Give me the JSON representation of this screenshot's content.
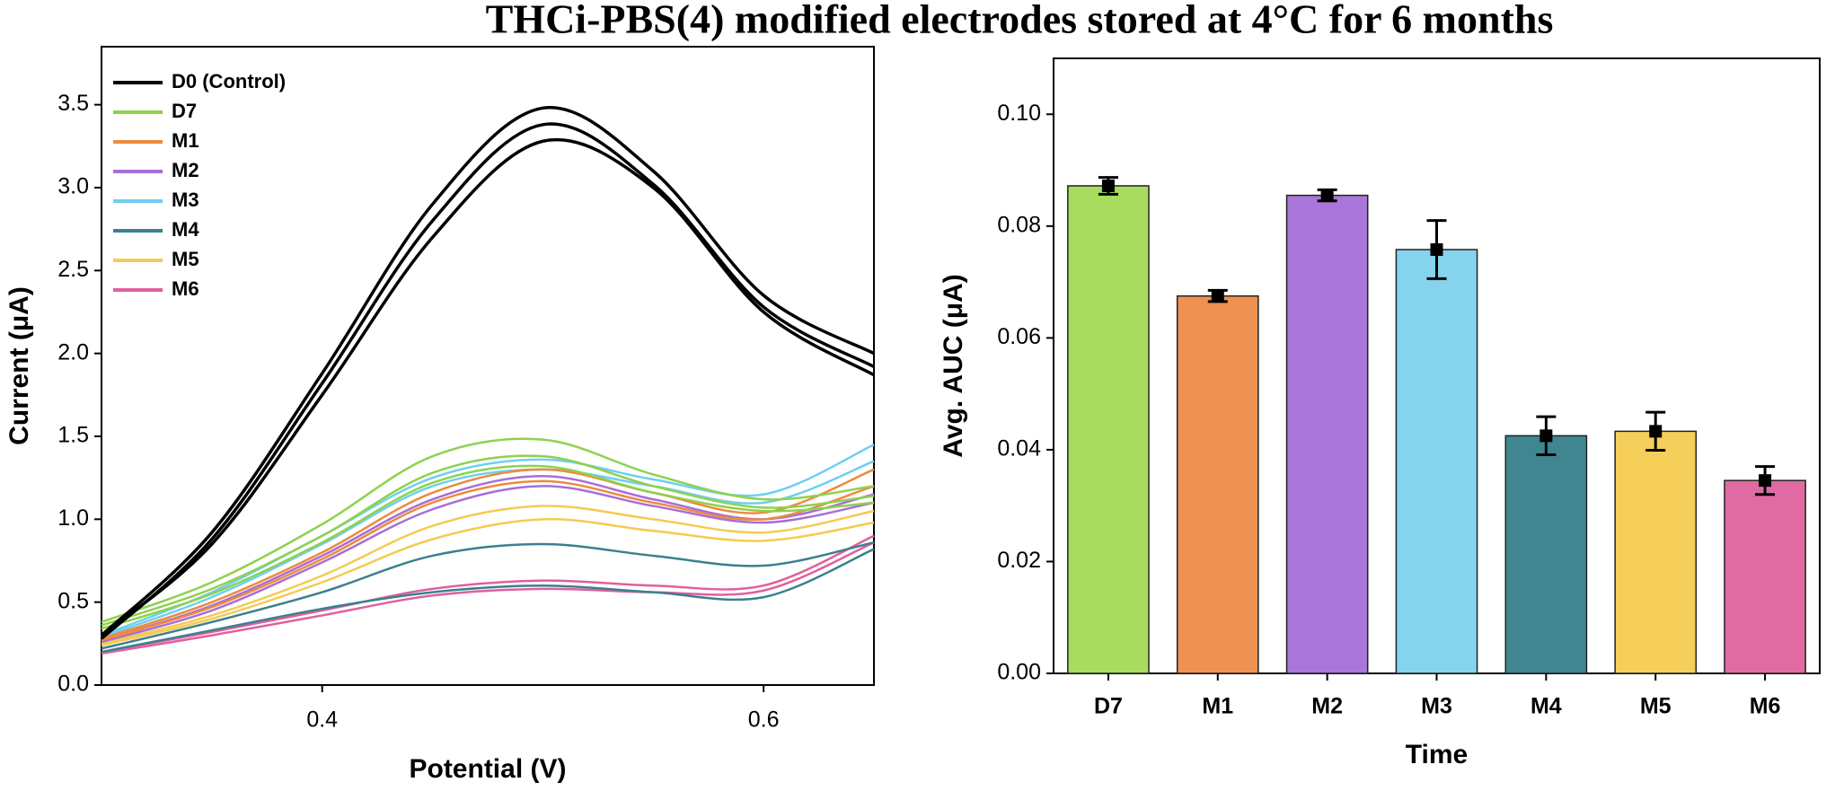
{
  "title": "THCi-PBS(4) modified electrodes stored at 4°C for 6 months",
  "chart_data": [
    {
      "type": "line",
      "xlabel": "Potential (V)",
      "ylabel": "Current (μA)",
      "x": [
        0.3,
        0.35,
        0.4,
        0.45,
        0.5,
        0.55,
        0.6,
        0.65
      ],
      "xlim": [
        0.3,
        0.65
      ],
      "xticks": [
        0.4,
        0.6
      ],
      "ylim": [
        0,
        3.85
      ],
      "yticks": [
        {
          "value": 0,
          "label": "0.0"
        },
        0.5,
        {
          "value": 1,
          "label": "1.0"
        },
        1.5,
        {
          "value": 2,
          "label": "2.0"
        },
        2.5,
        {
          "value": 3,
          "label": "3.0"
        },
        3.5
      ],
      "legend": "upper left",
      "series": [
        {
          "name": "D0 (Control)",
          "color": "#000000",
          "curves": [
            [
              0.3,
              0.92,
              1.88,
              2.9,
              3.48,
              3.1,
              2.35,
              2.0
            ],
            [
              0.28,
              0.88,
              1.82,
              2.8,
              3.38,
              3.02,
              2.28,
              1.92
            ],
            [
              0.3,
              0.85,
              1.75,
              2.7,
              3.28,
              3.0,
              2.25,
              1.87
            ]
          ]
        },
        {
          "name": "D7",
          "color": "#8fd14f",
          "curves": [
            [
              0.38,
              0.62,
              0.97,
              1.38,
              1.48,
              1.27,
              1.12,
              1.2
            ],
            [
              0.36,
              0.58,
              0.9,
              1.28,
              1.38,
              1.2,
              1.07,
              1.14
            ],
            [
              0.34,
              0.55,
              0.86,
              1.22,
              1.32,
              1.16,
              1.05,
              1.1
            ]
          ]
        },
        {
          "name": "M1",
          "color": "#ee8a3d",
          "curves": [
            [
              0.28,
              0.5,
              0.8,
              1.16,
              1.3,
              1.16,
              1.04,
              1.3
            ],
            [
              0.27,
              0.47,
              0.76,
              1.1,
              1.23,
              1.1,
              1.0,
              1.2
            ]
          ]
        },
        {
          "name": "M2",
          "color": "#a66fd8",
          "curves": [
            [
              0.27,
              0.48,
              0.78,
              1.12,
              1.26,
              1.12,
              1.0,
              1.15
            ],
            [
              0.26,
              0.45,
              0.74,
              1.06,
              1.2,
              1.08,
              0.98,
              1.1
            ]
          ]
        },
        {
          "name": "M3",
          "color": "#6fcff0",
          "curves": [
            [
              0.3,
              0.56,
              0.9,
              1.25,
              1.36,
              1.24,
              1.15,
              1.45
            ],
            [
              0.29,
              0.53,
              0.85,
              1.2,
              1.3,
              1.2,
              1.1,
              1.35
            ]
          ]
        },
        {
          "name": "M4",
          "color": "#3b8090",
          "curves": [
            [
              0.22,
              0.38,
              0.56,
              0.78,
              0.85,
              0.78,
              0.72,
              0.86
            ],
            [
              0.2,
              0.33,
              0.46,
              0.56,
              0.6,
              0.56,
              0.53,
              0.82
            ]
          ]
        },
        {
          "name": "M5",
          "color": "#f4cb52",
          "curves": [
            [
              0.25,
              0.42,
              0.66,
              0.96,
              1.08,
              1.0,
              0.92,
              1.05
            ],
            [
              0.24,
              0.4,
              0.62,
              0.88,
              1.0,
              0.93,
              0.87,
              0.98
            ]
          ]
        },
        {
          "name": "M6",
          "color": "#e0609c",
          "curves": [
            [
              0.2,
              0.32,
              0.45,
              0.58,
              0.63,
              0.6,
              0.6,
              0.9
            ],
            [
              0.19,
              0.3,
              0.42,
              0.54,
              0.58,
              0.56,
              0.57,
              0.86
            ]
          ]
        }
      ]
    },
    {
      "type": "bar",
      "xlabel": "Time",
      "ylabel": "Avg. AUC (μA)",
      "categories": [
        "D7",
        "M1",
        "M2",
        "M3",
        "M4",
        "M5",
        "M6"
      ],
      "values": [
        0.0872,
        0.0675,
        0.0855,
        0.0758,
        0.0425,
        0.0433,
        0.0345
      ],
      "errors": [
        0.0015,
        0.001,
        0.001,
        0.0052,
        0.0034,
        0.0034,
        0.0025
      ],
      "colors": [
        "#a8dc5e",
        "#ef9150",
        "#a877d9",
        "#85d3ec",
        "#3f8690",
        "#f5cf5a",
        "#e06ba3"
      ],
      "ylim": [
        0,
        0.11
      ],
      "yticks": [
        {
          "value": 0,
          "label": "0.00"
        },
        {
          "value": 0.02,
          "label": "0.02"
        },
        {
          "value": 0.04,
          "label": "0.04"
        },
        {
          "value": 0.06,
          "label": "0.06"
        },
        {
          "value": 0.08,
          "label": "0.08"
        },
        {
          "value": 0.1,
          "label": "0.10"
        }
      ]
    }
  ]
}
